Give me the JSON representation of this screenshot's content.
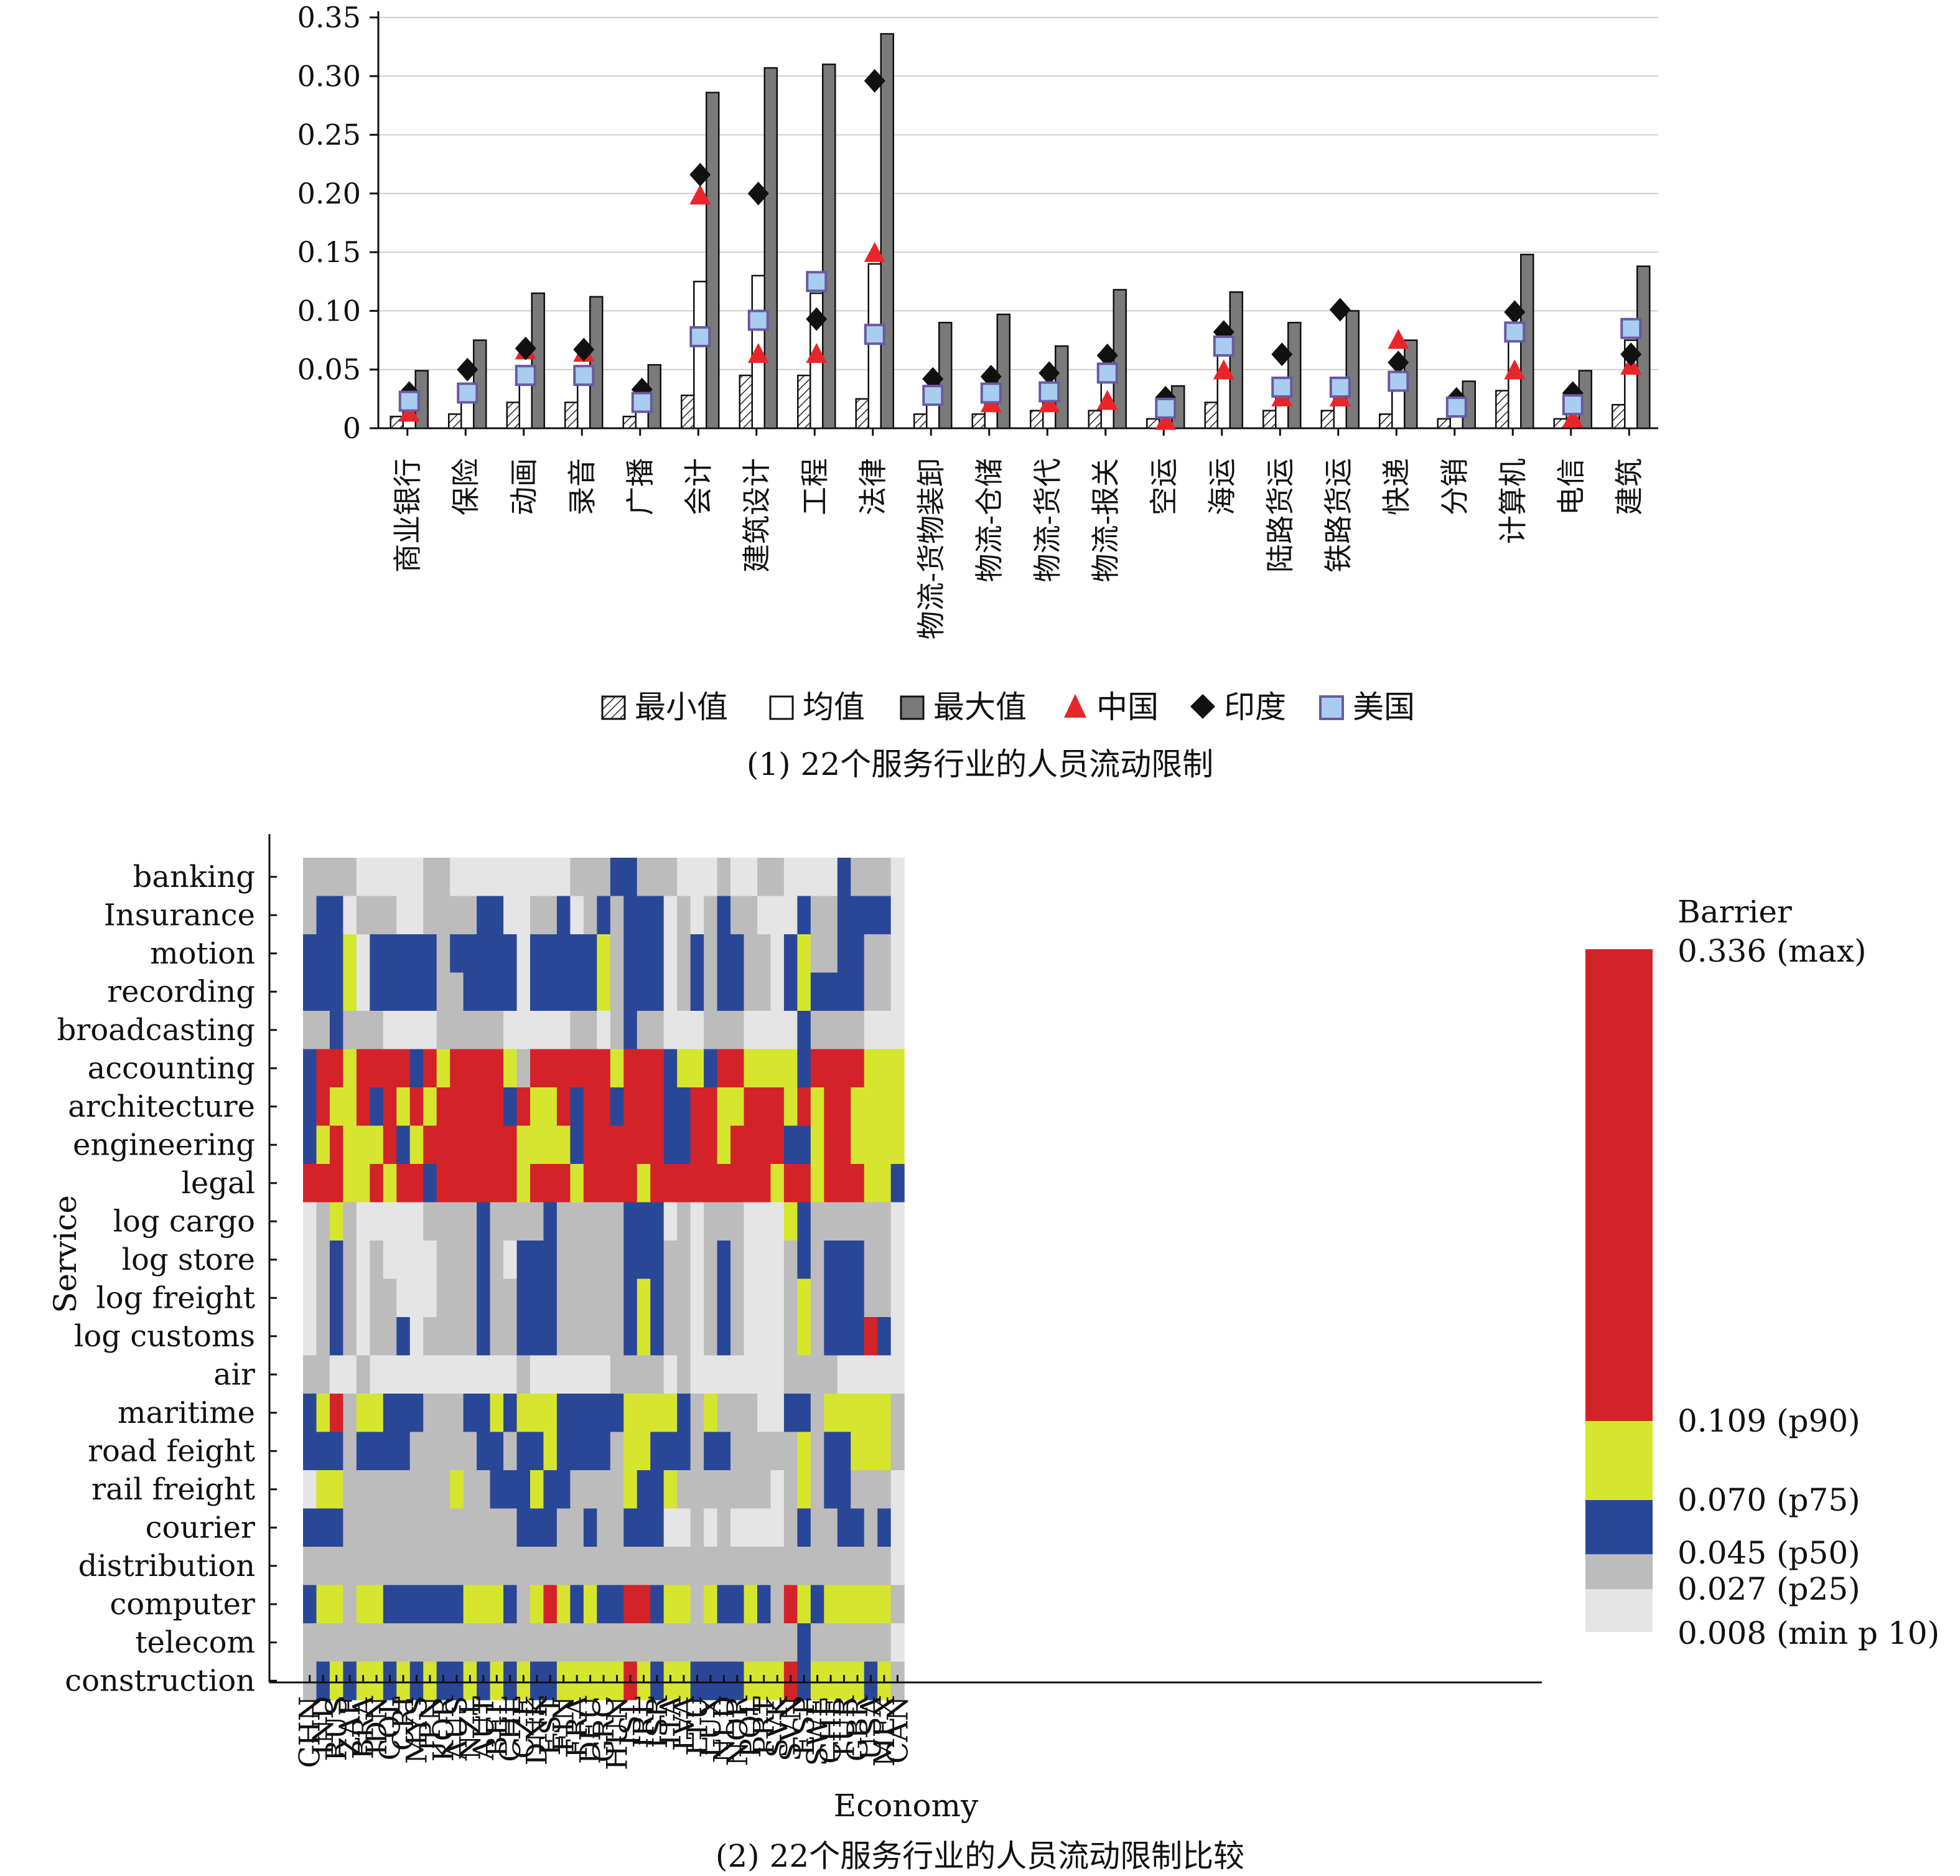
{
  "figure": {
    "caption_top": "(1) 22个服务行业的人员流动限制",
    "caption_bottom": "(2) 22个服务行业的人员流动限制比较"
  },
  "chart_data": [
    {
      "type": "bar",
      "title": "",
      "ylim": [
        0,
        0.35
      ],
      "yticks": [
        0,
        0.05,
        0.1,
        0.15,
        0.2,
        0.25,
        0.3,
        0.35
      ],
      "ytick_labels": [
        "0",
        "0.05",
        "0.10",
        "0.15",
        "0.20",
        "0.25",
        "0.30",
        "0.35"
      ],
      "grid": true,
      "legend_position": "bottom",
      "categories": [
        "商业银行",
        "保险",
        "动画",
        "录音",
        "广播",
        "会计",
        "建筑设计",
        "工程",
        "法律",
        "物流-货物装卸",
        "物流-仓储",
        "物流-货代",
        "物流-报关",
        "空运",
        "海运",
        "陆路货运",
        "铁路货运",
        "快递",
        "分销",
        "计算机",
        "电信",
        "建筑"
      ],
      "series": [
        {
          "name": "最小值",
          "kind": "bar",
          "style": "hatched",
          "values": [
            0.01,
            0.012,
            0.022,
            0.022,
            0.01,
            0.028,
            0.045,
            0.045,
            0.025,
            0.012,
            0.012,
            0.015,
            0.015,
            0.008,
            0.022,
            0.015,
            0.015,
            0.012,
            0.008,
            0.032,
            0.008,
            0.02
          ]
        },
        {
          "name": "均值",
          "kind": "bar",
          "style": "white",
          "values": [
            0.025,
            0.03,
            0.045,
            0.045,
            0.025,
            0.125,
            0.13,
            0.115,
            0.14,
            0.03,
            0.03,
            0.035,
            0.048,
            0.02,
            0.07,
            0.04,
            0.04,
            0.04,
            0.02,
            0.085,
            0.02,
            0.075
          ]
        },
        {
          "name": "最大值",
          "kind": "bar",
          "style": "gray",
          "values": [
            0.049,
            0.075,
            0.115,
            0.112,
            0.054,
            0.286,
            0.307,
            0.31,
            0.336,
            0.09,
            0.097,
            0.07,
            0.118,
            0.036,
            0.116,
            0.09,
            0.1,
            0.075,
            0.04,
            0.148,
            0.049,
            0.138
          ]
        },
        {
          "name": "中国",
          "kind": "marker",
          "marker": "triangle",
          "color": "#e8262a",
          "values": [
            0.012,
            null,
            0.065,
            0.063,
            null,
            0.197,
            0.062,
            0.062,
            0.148,
            null,
            0.02,
            0.02,
            0.022,
            0.005,
            0.048,
            0.025,
            0.025,
            0.074,
            null,
            0.048,
            0.007,
            0.052
          ]
        },
        {
          "name": "印度",
          "kind": "marker",
          "marker": "diamond",
          "color": "#111111",
          "values": [
            0.03,
            0.05,
            0.068,
            0.067,
            0.033,
            0.216,
            0.2,
            0.093,
            0.296,
            0.042,
            0.044,
            0.047,
            0.062,
            0.026,
            0.082,
            0.063,
            0.101,
            0.056,
            0.025,
            0.099,
            0.03,
            0.063
          ]
        },
        {
          "name": "美国",
          "kind": "marker",
          "marker": "square",
          "color": "#a9cdf0",
          "values": [
            0.023,
            0.03,
            0.045,
            0.045,
            0.022,
            0.078,
            0.092,
            0.125,
            0.08,
            0.028,
            0.03,
            0.031,
            0.047,
            0.017,
            0.07,
            0.035,
            0.035,
            0.04,
            0.018,
            0.082,
            0.02,
            0.085
          ]
        }
      ]
    },
    {
      "type": "heatmap",
      "title": "",
      "xlabel": "Economy",
      "ylabel": "Service",
      "x": [
        "CHN",
        "IND",
        "RUS",
        "ZAF",
        "BRA",
        "IDN",
        "COL",
        "CRI",
        "MYS",
        "JPN",
        "KOR",
        "AUS",
        "NZL",
        "AUT",
        "BEL",
        "CHL",
        "CZE",
        "DNK",
        "EST",
        "FIN",
        "FRA",
        "DEU",
        "GRC",
        "HUN",
        "ISL",
        "IRL",
        "ISR",
        "ITA",
        "LVA",
        "LTU",
        "LUX",
        "NLD",
        "NOR",
        "POL",
        "PRT",
        "SVK",
        "SVN",
        "ESP",
        "SWE",
        "CHE",
        "TUR",
        "GBR",
        "USA",
        "MEX",
        "CAN"
      ],
      "y": [
        "banking",
        "Insurance",
        "motion",
        "recording",
        "broadcasting",
        "accounting",
        "architecture",
        "engineering",
        "legal",
        "log cargo",
        "log store",
        "log freight",
        "log customs",
        "air",
        "maritime",
        "road feight",
        "rail freight",
        "courier",
        "distribution",
        "computer",
        "telecom",
        "construction"
      ],
      "legend": {
        "title": "Barrier",
        "labels": [
          "0.336 (max)",
          "0.109 (p90)",
          "0.070 (p75)",
          "0.045 (p50)",
          "0.027 (p25)",
          "0.008 (min p 10)"
        ],
        "bins": [
          {
            "range": [
              0.109,
              0.336
            ],
            "color": "#d42229"
          },
          {
            "range": [
              0.07,
              0.109
            ],
            "color": "#d6e62e"
          },
          {
            "range": [
              0.045,
              0.07
            ],
            "color": "#2a4797"
          },
          {
            "range": [
              0.027,
              0.045
            ],
            "color": "#bcbcbc"
          },
          {
            "range": [
              0.008,
              0.027
            ],
            "color": "#e5e5e5"
          }
        ]
      },
      "bin_codes": "0 = lightest (0.008–0.027), 1 = light gray, 2 = blue, 3 = yellow-green, 4 = red",
      "matrix": [
        "111100000110000000001112211100010011000021110",
        "122011100111122001120121222010121100021122220",
        "222302222212222202222231222012122110231122110",
        "222302222211222202222231222012122110232222110",
        "112111000011111000001101211000111000021111000",
        "244344442434444314444443444233244333324444333",
        "243342434344444243342442444224433444343443333",
        "234333423444444433332444444224434444223443333",
        "444334344244444434443444434444444443443444332",
        "013100000111121111211111222010111000321111110",
        "012101000011121022211111222110121000121222110",
        "012101100011121122211111232110121000131222110",
        "012101120111121122211111232110121000131222420",
        "110010000000000010000001111010000000111100000",
        "234133222111223233322222333321311100221333331",
        "222122221111122122322221332221221111131223331",
        "033111111113112223221111322311111110131221110",
        "222111111111111122211211222001010000121122120",
        "111111111111111111111111111111111111111111110",
        "233133222222333213432322442331322321432333331",
        "111111111111111111111111111111111111121111110",
        "123233232322323232233333432332222333423333231"
      ]
    }
  ]
}
